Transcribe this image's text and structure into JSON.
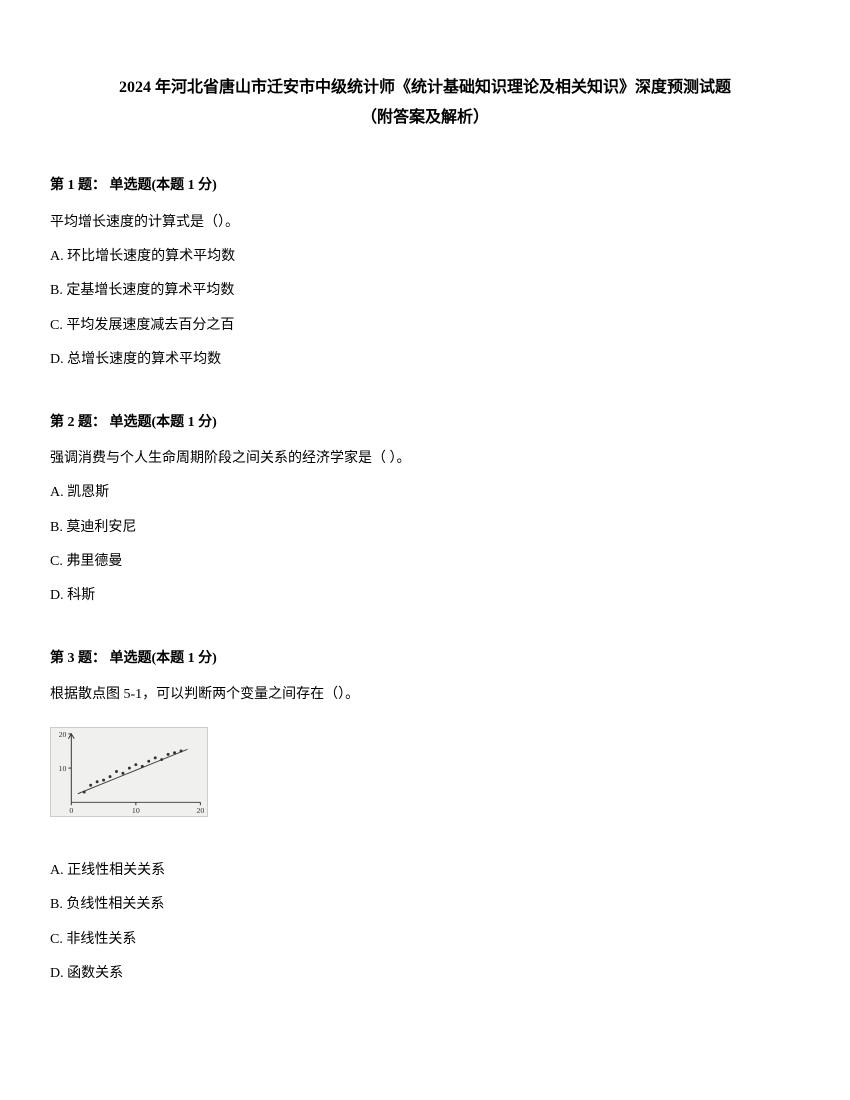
{
  "title_line1": "2024 年河北省唐山市迁安市中级统计师《统计基础知识理论及相关知识》深度预测试题",
  "title_line2": "（附答案及解析）",
  "questions": [
    {
      "header": "第 1 题： 单选题(本题 1 分)",
      "stem": "平均增长速度的计算式是（）。",
      "options": [
        "A. 环比增长速度的算术平均数",
        "B. 定基增长速度的算术平均数",
        "C. 平均发展速度减去百分之百",
        "D. 总增长速度的算术平均数"
      ]
    },
    {
      "header": "第 2 题： 单选题(本题 1 分)",
      "stem": "强调消费与个人生命周期阶段之间关系的经济学家是（  ）。",
      "options": [
        "A. 凯恩斯",
        "B. 莫迪利安尼",
        "C. 弗里德曼",
        "D. 科斯"
      ]
    },
    {
      "header": "第 3 题： 单选题(本题 1 分)",
      "stem": "根据散点图 5-1，可以判断两个变量之间存在（）。",
      "options": [
        "A. 正线性相关关系",
        "B. 负线性相关关系",
        "C. 非线性关系",
        "D. 函数关系"
      ]
    }
  ],
  "scatter": {
    "width": 158,
    "height": 90,
    "background_color": "#f0f0ee",
    "axis_color": "#333333",
    "point_color": "#333333",
    "line_color": "#444444",
    "x_range": [
      0,
      20
    ],
    "y_range": [
      0,
      20
    ],
    "x_ticks": [
      0,
      10,
      20
    ],
    "y_ticks": [
      10,
      20
    ],
    "tick_fontsize": 8,
    "points": [
      [
        2,
        3
      ],
      [
        3,
        5
      ],
      [
        4,
        6
      ],
      [
        5,
        6.5
      ],
      [
        6,
        7.5
      ],
      [
        7,
        9
      ],
      [
        8,
        8.5
      ],
      [
        9,
        10
      ],
      [
        10,
        11
      ],
      [
        11,
        10.5
      ],
      [
        12,
        12
      ],
      [
        13,
        13
      ],
      [
        14,
        12.5
      ],
      [
        15,
        14
      ],
      [
        16,
        14.5
      ],
      [
        17,
        15
      ]
    ],
    "trend_line": {
      "x1": 1,
      "y1": 2.5,
      "x2": 18,
      "y2": 15.5
    }
  }
}
